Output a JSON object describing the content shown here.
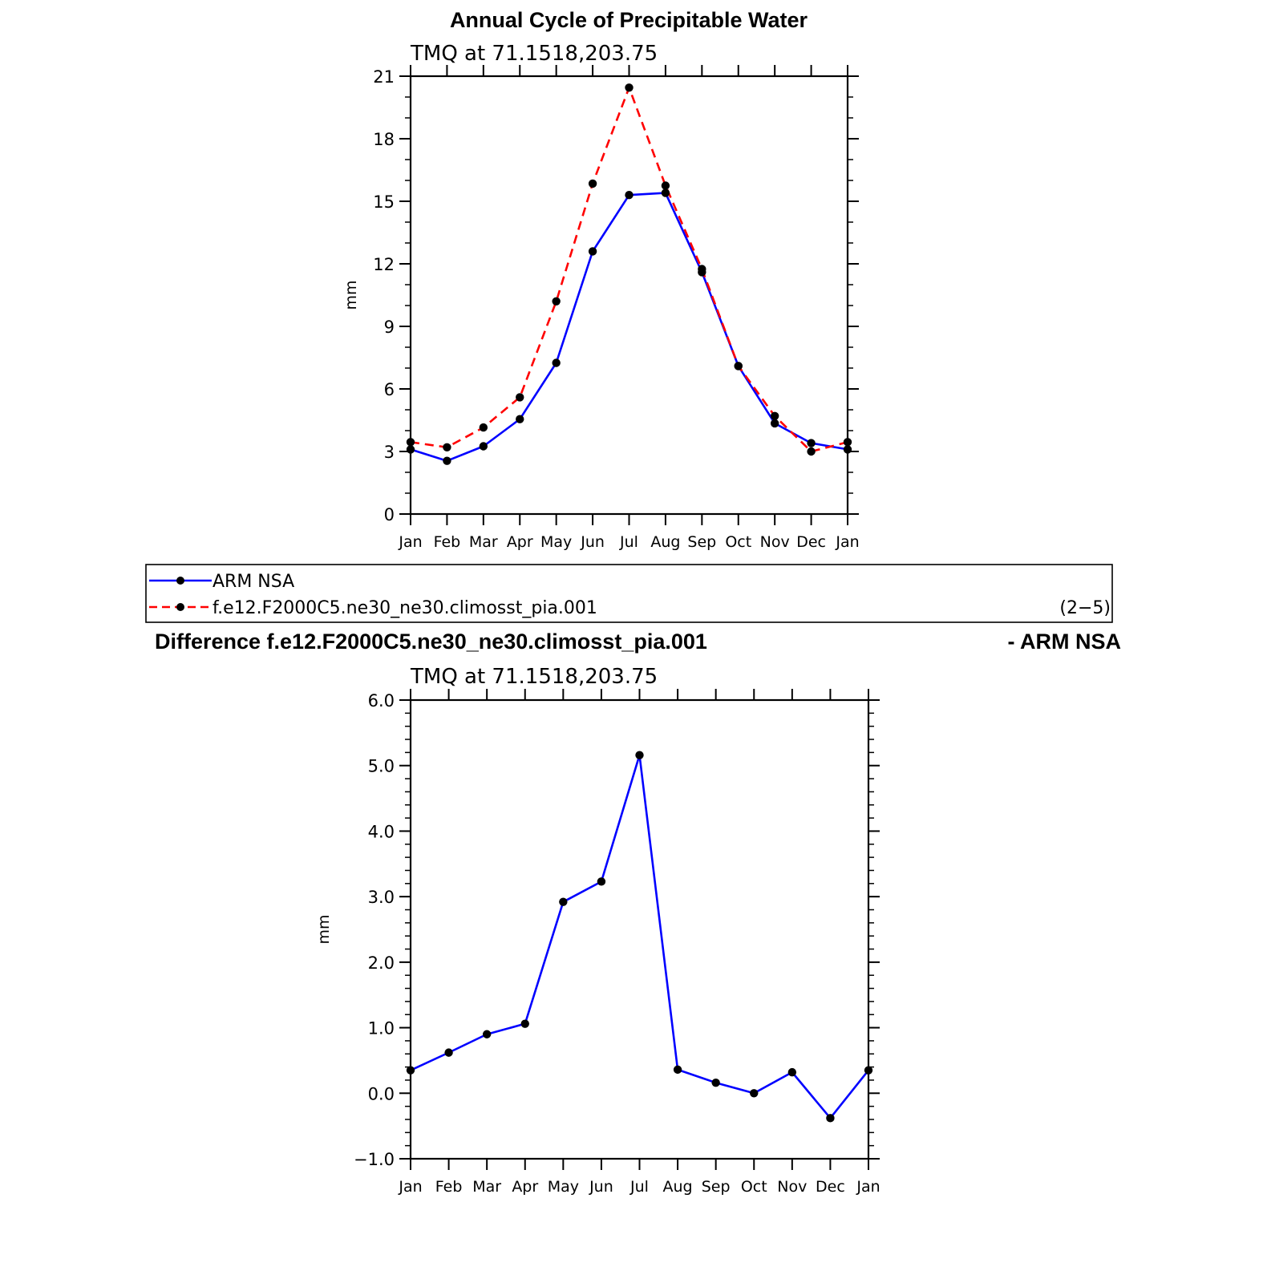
{
  "main_title": "Annual Cycle of Precipitable Water",
  "diff_title_left": "Difference f.e12.F2000C5.ne30_ne30.climosst_pia.001",
  "diff_title_right": "- ARM NSA",
  "legend": {
    "entries": [
      "ARM NSA",
      "f.e12.F2000C5.ne30_ne30.climosst_pia.001"
    ],
    "panel_label": "(2−5)"
  },
  "colors": {
    "obs": "#0000ff",
    "model": "#ff0000",
    "marker": "#000000"
  },
  "chart_data": [
    {
      "type": "line",
      "title": "TMQ  at  71.1518,203.75",
      "xlabel": "",
      "ylabel": "mm",
      "categories": [
        "Jan",
        "Feb",
        "Mar",
        "Apr",
        "May",
        "Jun",
        "Jul",
        "Aug",
        "Sep",
        "Oct",
        "Nov",
        "Dec",
        "Jan"
      ],
      "ylim": [
        0,
        21
      ],
      "yticks": [
        0,
        3,
        6,
        9,
        12,
        15,
        18,
        21
      ],
      "ytick_labels": [
        "0",
        "3",
        "6",
        "9",
        "12",
        "15",
        "18",
        "21"
      ],
      "minor_step": 1,
      "series": [
        {
          "name": "ARM NSA",
          "style": "solid",
          "color": "#0000ff",
          "values": [
            3.1,
            2.55,
            3.25,
            4.55,
            7.25,
            12.6,
            15.3,
            15.4,
            11.6,
            7.1,
            4.35,
            3.4,
            3.1
          ]
        },
        {
          "name": "f.e12.F2000C5.ne30_ne30.climosst_pia.001",
          "style": "dashed",
          "color": "#ff0000",
          "values": [
            3.45,
            3.2,
            4.15,
            5.6,
            10.2,
            15.85,
            20.45,
            15.75,
            11.75,
            7.1,
            4.7,
            3.0,
            3.45
          ]
        }
      ]
    },
    {
      "type": "line",
      "title": "TMQ  at  71.1518,203.75",
      "xlabel": "",
      "ylabel": "mm",
      "categories": [
        "Jan",
        "Feb",
        "Mar",
        "Apr",
        "May",
        "Jun",
        "Jul",
        "Aug",
        "Sep",
        "Oct",
        "Nov",
        "Dec",
        "Jan"
      ],
      "ylim": [
        -1.0,
        6.0
      ],
      "yticks": [
        -1.0,
        0.0,
        1.0,
        2.0,
        3.0,
        4.0,
        5.0,
        6.0
      ],
      "ytick_labels": [
        "−1.0",
        "0.0",
        "1.0",
        "2.0",
        "3.0",
        "4.0",
        "5.0",
        "6.0"
      ],
      "minor_step": 0.2,
      "series": [
        {
          "style": "solid",
          "color": "#0000ff",
          "values": [
            0.35,
            0.62,
            0.9,
            1.06,
            2.92,
            3.23,
            5.16,
            0.36,
            0.16,
            0.0,
            0.32,
            -0.38,
            0.35
          ]
        }
      ]
    }
  ]
}
